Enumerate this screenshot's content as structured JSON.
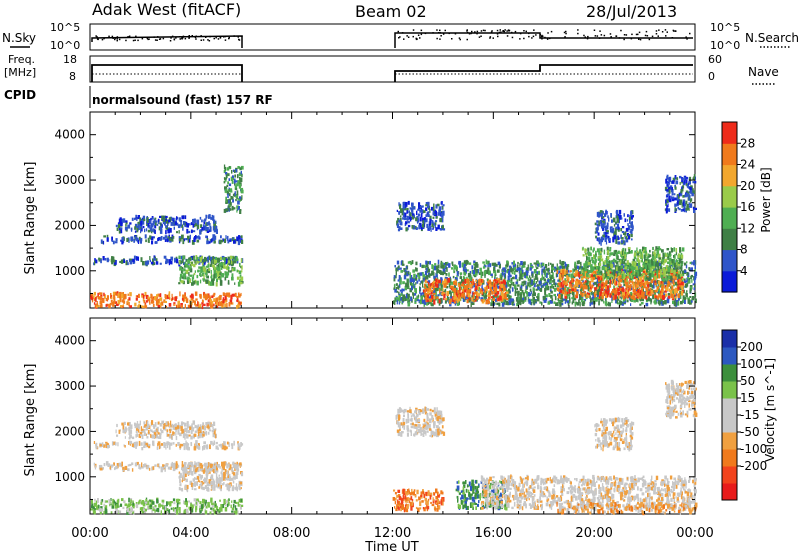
{
  "header": {
    "station": "Adak West (fitACF)",
    "beam": "Beam 02",
    "date": "28/Jul/2013",
    "cpid_label": "CPID",
    "cpid_value": "normalsound (fast) 157 RF"
  },
  "params": {
    "nsky_label": "N.Sky",
    "nsky_ticks": [
      "10^5",
      "10^0"
    ],
    "nsearch_label": "N.Search",
    "nsearch_ticks": [
      "10^5",
      "10^0"
    ],
    "freq_label_1": "Freq.",
    "freq_label_2": "[MHz]",
    "freq_ticks": [
      "18",
      "8"
    ],
    "nave_label": "Nave",
    "nave_ticks": [
      "60",
      "0"
    ]
  },
  "colors": {
    "power": [
      "#0b1bd8",
      "#2f55c9",
      "#3f7f45",
      "#4fae52",
      "#9acb4a",
      "#f2a72e",
      "#f07a1c",
      "#ee2b1a"
    ],
    "velocity": [
      "#e81b1b",
      "#f2431c",
      "#f07a1c",
      "#f0a040",
      "#c8c8c8",
      "#c8c8c8",
      "#7ac24a",
      "#3c8f3c",
      "#2c58c0",
      "#1a2fa8"
    ]
  },
  "chart_data": [
    {
      "type": "heatmap",
      "quantity": "power",
      "ylabel": "Slant Range [km]",
      "xlabel": "Time UT",
      "x_tick_labels": [
        "00:00",
        "04:00",
        "08:00",
        "12:00",
        "16:00",
        "20:00",
        "00:00"
      ],
      "x_range_hours": [
        0,
        24
      ],
      "y_tick_labels": [
        "1000",
        "2000",
        "3000",
        "4000"
      ],
      "y_ticks": [
        1000,
        2000,
        3000,
        4000
      ],
      "ylim": [
        180,
        4500
      ],
      "colorbar_label": "Power [dB]",
      "colorbar_ticks": [
        "4",
        "8",
        "12",
        "16",
        "20",
        "24",
        "28"
      ],
      "data_gap_hours": [
        6.0,
        12.0
      ],
      "echo_regions": [
        {
          "t0": 0.1,
          "t1": 6.0,
          "r0": 1620,
          "r1": 1760,
          "level": 1
        },
        {
          "t0": 1.0,
          "t1": 5.0,
          "r0": 1850,
          "r1": 2200,
          "level": 1
        },
        {
          "t0": 0.1,
          "t1": 6.0,
          "r0": 1150,
          "r1": 1300,
          "level": 1
        },
        {
          "t0": 3.5,
          "t1": 6.0,
          "r0": 700,
          "r1": 1300,
          "level": 3
        },
        {
          "t0": 5.3,
          "t1": 6.0,
          "r0": 2300,
          "r1": 3300,
          "level": 2
        },
        {
          "t0": 0.0,
          "t1": 6.0,
          "r0": 200,
          "r1": 500,
          "level": 6
        },
        {
          "t0": 12.0,
          "t1": 24.0,
          "r0": 250,
          "r1": 1200,
          "level": 2
        },
        {
          "t0": 13.2,
          "t1": 16.5,
          "r0": 300,
          "r1": 800,
          "level": 6
        },
        {
          "t0": 18.5,
          "t1": 23.5,
          "r0": 400,
          "r1": 1000,
          "level": 6
        },
        {
          "t0": 19.5,
          "t1": 23.5,
          "r0": 800,
          "r1": 1500,
          "level": 3
        },
        {
          "t0": 12.1,
          "t1": 14.0,
          "r0": 1900,
          "r1": 2500,
          "level": 1
        },
        {
          "t0": 20.0,
          "t1": 21.5,
          "r0": 1600,
          "r1": 2300,
          "level": 1
        },
        {
          "t0": 22.8,
          "t1": 24.0,
          "r0": 2300,
          "r1": 3100,
          "level": 1
        }
      ]
    },
    {
      "type": "heatmap",
      "quantity": "velocity",
      "ylabel": "Slant Range [km]",
      "xlabel": "Time UT",
      "x_tick_labels": [
        "00:00",
        "04:00",
        "08:00",
        "12:00",
        "16:00",
        "20:00",
        "00:00"
      ],
      "x_range_hours": [
        0,
        24
      ],
      "y_tick_labels": [
        "1000",
        "2000",
        "3000",
        "4000"
      ],
      "y_ticks": [
        1000,
        2000,
        3000,
        4000
      ],
      "ylim": [
        180,
        4500
      ],
      "colorbar_label": "Velocity [m s^-1]",
      "colorbar_ticks": [
        "200",
        "100",
        "50",
        "15",
        "-15",
        "-50",
        "-100",
        "-200"
      ],
      "data_gap_hours": [
        6.0,
        12.0
      ],
      "echo_regions": [
        {
          "t0": 0.1,
          "t1": 6.0,
          "r0": 1620,
          "r1": 1760,
          "level": 4
        },
        {
          "t0": 1.0,
          "t1": 5.0,
          "r0": 1850,
          "r1": 2200,
          "level": 4
        },
        {
          "t0": 0.1,
          "t1": 6.0,
          "r0": 1150,
          "r1": 1300,
          "level": 4
        },
        {
          "t0": 3.5,
          "t1": 6.0,
          "r0": 700,
          "r1": 1300,
          "level": 4
        },
        {
          "t0": 0.0,
          "t1": 6.0,
          "r0": 200,
          "r1": 500,
          "level": 6
        },
        {
          "t0": 12.0,
          "t1": 14.0,
          "r0": 250,
          "r1": 700,
          "level": 2
        },
        {
          "t0": 14.5,
          "t1": 16.5,
          "r0": 300,
          "r1": 900,
          "level": 7
        },
        {
          "t0": 15.5,
          "t1": 24.0,
          "r0": 300,
          "r1": 1000,
          "level": 4
        },
        {
          "t0": 18.5,
          "t1": 24.0,
          "r0": 200,
          "r1": 400,
          "level": 3
        },
        {
          "t0": 12.1,
          "t1": 14.0,
          "r0": 1900,
          "r1": 2500,
          "level": 4
        },
        {
          "t0": 20.0,
          "t1": 21.5,
          "r0": 1600,
          "r1": 2300,
          "level": 4
        },
        {
          "t0": 22.8,
          "t1": 24.0,
          "r0": 2300,
          "r1": 3100,
          "level": 4
        }
      ]
    }
  ]
}
